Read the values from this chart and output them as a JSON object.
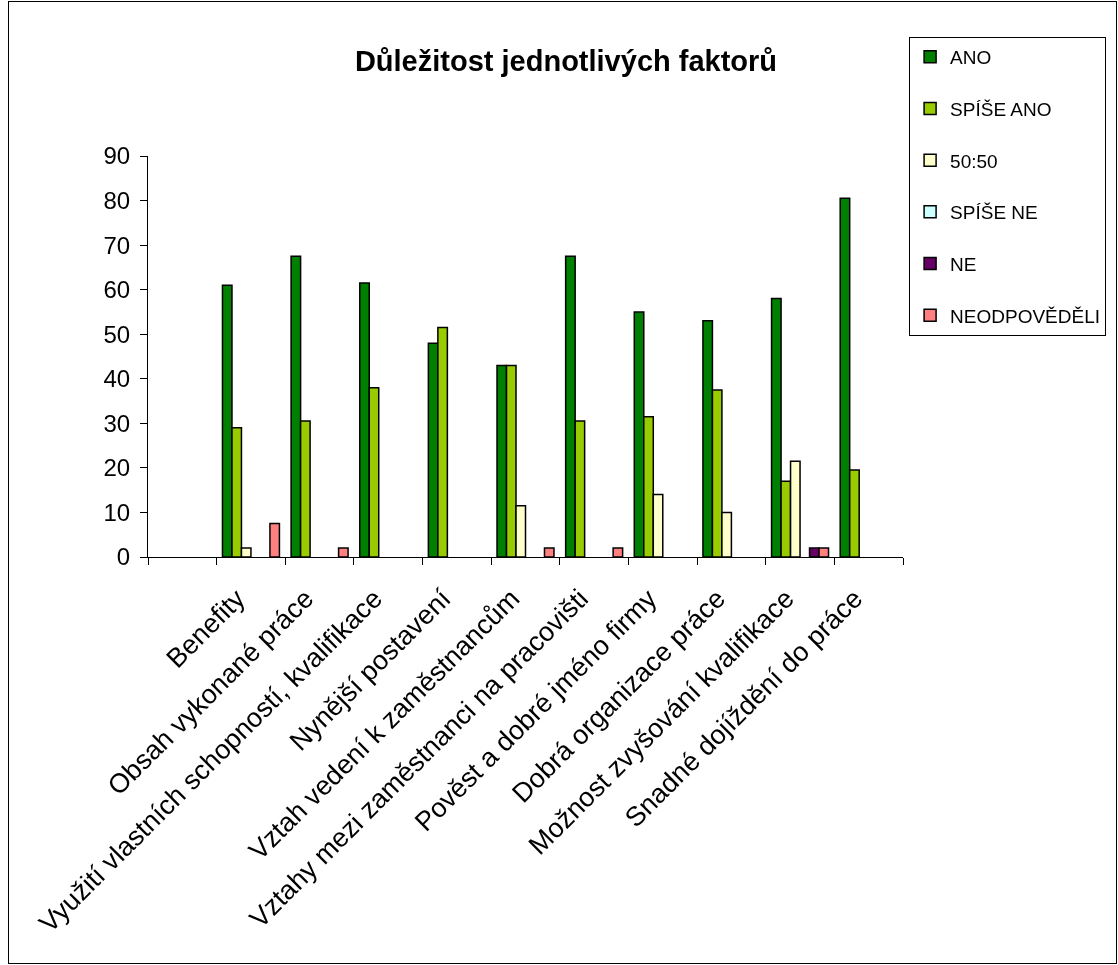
{
  "chart_data": {
    "type": "bar",
    "title": "Důležitost jednotlivých faktorů",
    "categories": [
      null,
      "Benefity",
      "Obsah vykonané práce",
      "Využití vlastních schopností, kvalifikace",
      "Nynější postavení",
      "Vztah vedení k zaměstnancům",
      "Vztahy mezi zaměstnanci na pracovišti",
      "Pověst a dobré jméno firmy",
      "Dobrá organizace práce",
      "Možnost zvyšování kvalifikace",
      "Snadné dojíždění do práce"
    ],
    "series": [
      {
        "name": "ANO",
        "color": "#008000",
        "values": [
          null,
          61,
          67.5,
          61.5,
          48,
          43,
          67.5,
          55,
          53,
          58,
          80.5
        ]
      },
      {
        "name": "SPÍŠE ANO",
        "color": "#99cc00",
        "values": [
          null,
          29,
          30.5,
          38,
          51.5,
          43,
          30.5,
          31.5,
          37.5,
          17,
          19.5
        ]
      },
      {
        "name": "50:50",
        "color": "#ffffcc",
        "values": [
          null,
          2,
          null,
          null,
          null,
          11.5,
          null,
          14,
          10,
          21.5,
          null
        ]
      },
      {
        "name": "SPÍŠE NE",
        "color": "#ccffff",
        "values": [
          null,
          null,
          null,
          null,
          null,
          null,
          null,
          null,
          null,
          null,
          null
        ]
      },
      {
        "name": "NE",
        "color": "#660066",
        "values": [
          null,
          null,
          null,
          null,
          null,
          null,
          null,
          null,
          null,
          2,
          null
        ]
      },
      {
        "name": "NEODPOVĚDĚLI",
        "color": "#ff8080",
        "values": [
          null,
          7.5,
          2,
          null,
          null,
          2,
          2,
          null,
          null,
          2,
          null
        ]
      }
    ],
    "ylim": [
      0,
      90
    ],
    "yticks": [
      0,
      10,
      20,
      30,
      40,
      50,
      60,
      70,
      80,
      90
    ],
    "grid": false,
    "legend": "top right"
  }
}
